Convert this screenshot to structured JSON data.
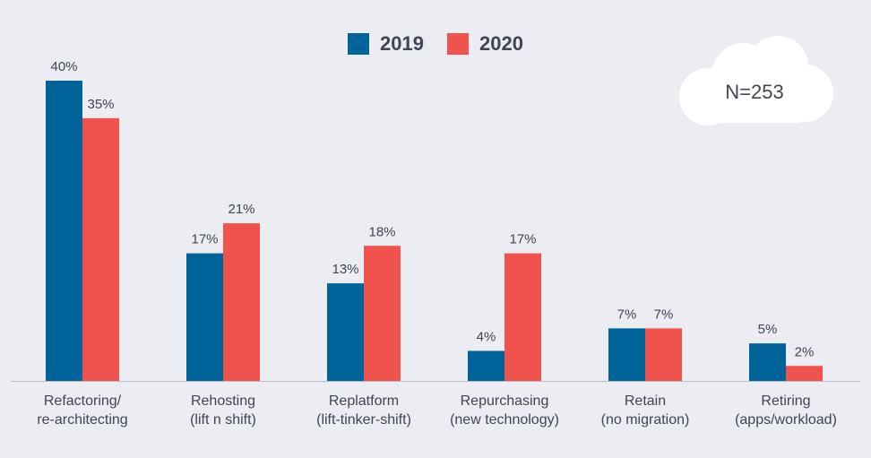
{
  "chart_data": {
    "type": "bar",
    "categories": [
      [
        "Refactoring/",
        "re-architecting"
      ],
      [
        "Rehosting",
        "(lift n shift)"
      ],
      [
        "Replatform",
        "(lift-tinker-shift)"
      ],
      [
        "Repurchasing",
        "(new technology)"
      ],
      [
        "Retain",
        "(no migration)"
      ],
      [
        "Retiring",
        "(apps/workload)"
      ]
    ],
    "series": [
      {
        "name": "2019",
        "values": [
          40,
          17,
          13,
          4,
          7,
          5
        ],
        "labels": [
          "40%",
          "17%",
          "13%",
          "4%",
          "7%",
          "5%"
        ],
        "color": "#00649a"
      },
      {
        "name": "2020",
        "values": [
          35,
          21,
          18,
          17,
          7,
          2
        ],
        "labels": [
          "35%",
          "21%",
          "18%",
          "17%",
          "7%",
          "2%"
        ],
        "color": "#f0524d"
      }
    ],
    "ylim": [
      0,
      40
    ],
    "legend_position": "top-center",
    "grid": false
  },
  "annotation": {
    "text": "N=253",
    "shape": "cloud-icon"
  },
  "colors": {
    "background": "#ecedf2",
    "axis": "#b7bcc8",
    "label": "#3f4553"
  }
}
